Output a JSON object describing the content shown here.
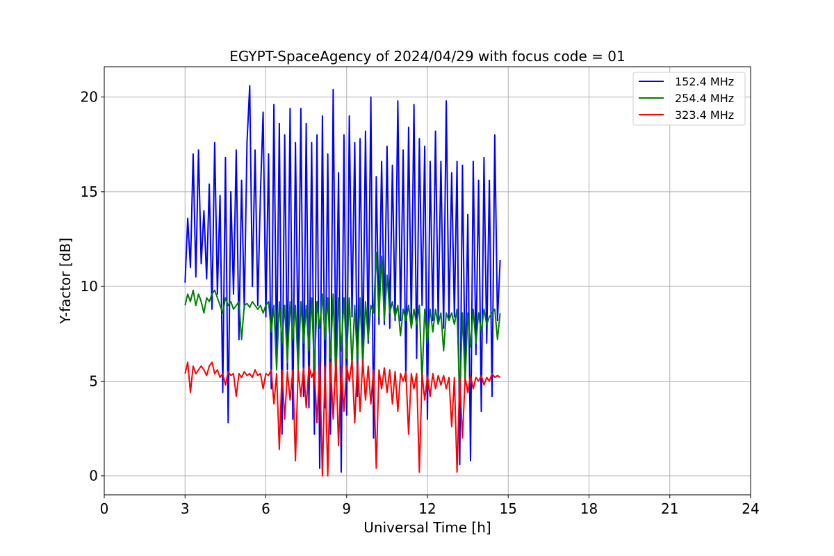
{
  "chart_data": {
    "type": "line",
    "title": "EGYPT-SpaceAgency of 2024/04/29 with focus code = 01",
    "xlabel": "Universal Time [h]",
    "ylabel": "Y-factor [dB]",
    "xlim": [
      0,
      24
    ],
    "ylim": [
      -1,
      21.6
    ],
    "xticks": [
      0,
      3,
      6,
      9,
      12,
      15,
      18,
      21,
      24
    ],
    "xtick_labels": [
      "0",
      "3",
      "6",
      "9",
      "12",
      "15",
      "18",
      "21",
      "24"
    ],
    "yticks": [
      0,
      5,
      10,
      15,
      20
    ],
    "ytick_labels": [
      "0",
      "5",
      "10",
      "15",
      "20"
    ],
    "grid": true,
    "legend_position": "top-right",
    "series": [
      {
        "name": "152.4 MHz",
        "color": "#0000ff",
        "x": [
          3.0,
          3.1,
          3.2,
          3.3,
          3.4,
          3.5,
          3.6,
          3.7,
          3.8,
          3.9,
          4.0,
          4.1,
          4.2,
          4.3,
          4.4,
          4.5,
          4.6,
          4.7,
          4.8,
          4.9,
          5.0,
          5.1,
          5.2,
          5.3,
          5.4,
          5.5,
          5.6,
          5.7,
          5.8,
          5.9,
          6.0,
          6.1,
          6.2,
          6.3,
          6.4,
          6.5,
          6.6,
          6.7,
          6.8,
          6.9,
          7.0,
          7.1,
          7.2,
          7.3,
          7.4,
          7.5,
          7.6,
          7.7,
          7.8,
          7.9,
          8.0,
          8.1,
          8.2,
          8.3,
          8.4,
          8.5,
          8.6,
          8.7,
          8.8,
          8.9,
          9.0,
          9.1,
          9.2,
          9.3,
          9.4,
          9.5,
          9.6,
          9.7,
          9.8,
          9.9,
          10.0,
          10.1,
          10.2,
          10.3,
          10.4,
          10.5,
          10.6,
          10.7,
          10.8,
          10.9,
          11.0,
          11.1,
          11.2,
          11.3,
          11.4,
          11.5,
          11.6,
          11.7,
          11.8,
          11.9,
          12.0,
          12.1,
          12.2,
          12.3,
          12.4,
          12.5,
          12.6,
          12.7,
          12.8,
          12.9,
          13.0,
          13.1,
          13.2,
          13.3,
          13.4,
          13.5,
          13.6,
          13.7,
          13.8,
          13.9,
          14.0,
          14.1,
          14.2,
          14.3,
          14.4,
          14.5,
          14.6,
          14.7
        ],
        "y": [
          10.2,
          13.6,
          11.0,
          17.0,
          10.5,
          17.2,
          11.2,
          14.0,
          10.4,
          15.4,
          8.8,
          17.6,
          9.6,
          14.8,
          4.4,
          16.8,
          2.8,
          15.0,
          9.6,
          17.2,
          7.2,
          15.6,
          8.8,
          17.6,
          20.6,
          10.0,
          17.2,
          9.0,
          15.0,
          19.2,
          8.4,
          17.0,
          4.6,
          19.6,
          6.0,
          18.6,
          2.2,
          18.0,
          5.6,
          19.4,
          3.0,
          17.6,
          6.4,
          19.4,
          4.2,
          18.6,
          3.6,
          17.6,
          2.2,
          18.0,
          0.4,
          19.0,
          3.6,
          17.0,
          2.2,
          20.4,
          6.0,
          16.0,
          0.2,
          18.0,
          3.2,
          19.0,
          8.4,
          17.6,
          4.2,
          17.8,
          6.2,
          18.2,
          7.0,
          20.0,
          2.0,
          15.8,
          8.0,
          16.6,
          8.0,
          17.4,
          7.8,
          16.4,
          8.2,
          19.8,
          8.2,
          17.2,
          5.0,
          18.4,
          8.0,
          19.6,
          6.2,
          17.8,
          9.0,
          17.4,
          3.0,
          16.6,
          8.2,
          18.2,
          8.2,
          16.6,
          7.8,
          19.8,
          8.2,
          16.0,
          8.4,
          16.6,
          0.6,
          16.4,
          5.0,
          13.8,
          0.8,
          16.6,
          6.4,
          15.6,
          3.4,
          16.8,
          7.0,
          15.6,
          4.2,
          18.0,
          8.2,
          11.4
        ]
      },
      {
        "name": "254.4 MHz",
        "color": "#008000",
        "x": [
          3.0,
          3.1,
          3.2,
          3.3,
          3.4,
          3.5,
          3.6,
          3.7,
          3.8,
          3.9,
          4.0,
          4.1,
          4.2,
          4.3,
          4.4,
          4.5,
          4.6,
          4.7,
          4.8,
          4.9,
          5.0,
          5.1,
          5.2,
          5.3,
          5.4,
          5.5,
          5.6,
          5.7,
          5.8,
          5.9,
          6.0,
          6.1,
          6.2,
          6.3,
          6.4,
          6.5,
          6.6,
          6.7,
          6.8,
          6.9,
          7.0,
          7.1,
          7.2,
          7.3,
          7.4,
          7.5,
          7.6,
          7.7,
          7.8,
          7.9,
          8.0,
          8.1,
          8.2,
          8.3,
          8.4,
          8.5,
          8.6,
          8.7,
          8.8,
          8.9,
          9.0,
          9.1,
          9.2,
          9.3,
          9.4,
          9.5,
          9.6,
          9.7,
          9.8,
          9.9,
          10.0,
          10.1,
          10.2,
          10.3,
          10.4,
          10.5,
          10.6,
          10.7,
          10.8,
          10.9,
          11.0,
          11.1,
          11.2,
          11.3,
          11.4,
          11.5,
          11.6,
          11.7,
          11.8,
          11.9,
          12.0,
          12.1,
          12.2,
          12.3,
          12.4,
          12.5,
          12.6,
          12.7,
          12.8,
          12.9,
          13.0,
          13.1,
          13.2,
          13.3,
          13.4,
          13.5,
          13.6,
          13.7,
          13.8,
          13.9,
          14.0,
          14.1,
          14.2,
          14.3,
          14.4,
          14.5,
          14.6,
          14.7
        ],
        "y": [
          9.0,
          9.6,
          9.2,
          9.8,
          9.0,
          9.6,
          9.2,
          8.6,
          9.4,
          9.2,
          9.6,
          9.8,
          9.4,
          9.0,
          8.6,
          9.4,
          9.0,
          9.2,
          8.8,
          9.0,
          9.2,
          7.2,
          9.0,
          9.1,
          8.9,
          9.2,
          9.0,
          8.8,
          9.0,
          8.6,
          9.0,
          9.2,
          7.6,
          9.0,
          5.6,
          9.2,
          7.0,
          9.0,
          6.0,
          9.2,
          7.2,
          9.0,
          5.6,
          9.2,
          7.0,
          9.0,
          6.6,
          9.4,
          5.6,
          9.2,
          7.8,
          9.6,
          7.2,
          9.4,
          6.2,
          9.6,
          5.0,
          9.4,
          6.6,
          9.4,
          6.2,
          9.4,
          5.8,
          9.0,
          6.0,
          9.4,
          5.8,
          9.2,
          7.2,
          9.0,
          8.6,
          11.8,
          8.4,
          11.6,
          8.2,
          10.6,
          8.6,
          9.2,
          8.4,
          9.0,
          7.4,
          8.8,
          8.2,
          9.0,
          7.8,
          8.8,
          8.0,
          9.0,
          5.0,
          8.8,
          7.0,
          8.8,
          7.6,
          8.8,
          8.0,
          8.6,
          6.6,
          8.6,
          8.2,
          8.6,
          8.0,
          8.8,
          4.0,
          8.6,
          5.0,
          8.6,
          6.8,
          8.8,
          7.0,
          8.6,
          7.6,
          8.8,
          8.0,
          8.4,
          8.6,
          8.8,
          7.2,
          8.6
        ]
      },
      {
        "name": "323.4 MHz",
        "color": "#ff0000",
        "x": [
          3.0,
          3.1,
          3.2,
          3.3,
          3.4,
          3.5,
          3.6,
          3.7,
          3.8,
          3.9,
          4.0,
          4.1,
          4.2,
          4.3,
          4.4,
          4.5,
          4.6,
          4.7,
          4.8,
          4.9,
          5.0,
          5.1,
          5.2,
          5.3,
          5.4,
          5.5,
          5.6,
          5.7,
          5.8,
          5.9,
          6.0,
          6.1,
          6.2,
          6.3,
          6.4,
          6.5,
          6.6,
          6.7,
          6.8,
          6.9,
          7.0,
          7.1,
          7.2,
          7.3,
          7.4,
          7.5,
          7.6,
          7.7,
          7.8,
          7.9,
          8.0,
          8.1,
          8.2,
          8.3,
          8.4,
          8.5,
          8.6,
          8.7,
          8.8,
          8.9,
          9.0,
          9.1,
          9.2,
          9.3,
          9.4,
          9.5,
          9.6,
          9.7,
          9.8,
          9.9,
          10.0,
          10.1,
          10.2,
          10.3,
          10.4,
          10.5,
          10.6,
          10.7,
          10.8,
          10.9,
          11.0,
          11.1,
          11.2,
          11.3,
          11.4,
          11.5,
          11.6,
          11.7,
          11.8,
          11.9,
          12.0,
          12.1,
          12.2,
          12.3,
          12.4,
          12.5,
          12.6,
          12.7,
          12.8,
          12.9,
          13.0,
          13.1,
          13.2,
          13.3,
          13.4,
          13.5,
          13.6,
          13.7,
          13.8,
          13.9,
          14.0,
          14.1,
          14.2,
          14.3,
          14.4,
          14.5,
          14.6,
          14.7
        ],
        "y": [
          5.4,
          6.0,
          4.4,
          5.8,
          5.4,
          5.6,
          5.8,
          5.6,
          5.3,
          5.8,
          6.0,
          5.4,
          5.6,
          5.2,
          5.4,
          4.8,
          5.5,
          5.3,
          5.4,
          4.2,
          5.4,
          5.2,
          5.5,
          5.3,
          5.4,
          5.2,
          5.6,
          5.3,
          5.4,
          4.6,
          5.4,
          5.3,
          5.6,
          3.8,
          5.4,
          1.4,
          5.6,
          3.0,
          5.5,
          4.0,
          5.6,
          0.8,
          5.6,
          4.2,
          5.7,
          3.6,
          5.8,
          5.2,
          5.6,
          2.8,
          6.0,
          0.0,
          5.8,
          0.0,
          6.0,
          3.0,
          6.2,
          1.6,
          5.8,
          3.4,
          5.8,
          5.0,
          6.1,
          2.8,
          6.0,
          3.4,
          6.1,
          4.0,
          5.8,
          3.8,
          5.6,
          0.4,
          5.6,
          4.6,
          5.7,
          4.4,
          5.6,
          3.8,
          5.5,
          3.4,
          5.4,
          5.0,
          5.5,
          2.2,
          5.4,
          4.6,
          5.4,
          0.2,
          5.4,
          4.0,
          5.3,
          4.2,
          5.4,
          4.6,
          5.3,
          4.8,
          5.3,
          4.6,
          5.2,
          2.6,
          5.2,
          0.2,
          5.2,
          2.0,
          5.2,
          4.4,
          5.3,
          4.6,
          5.2,
          5.0,
          5.3,
          4.8,
          5.2,
          5.0,
          5.4,
          5.2,
          5.3,
          5.2
        ]
      }
    ]
  }
}
